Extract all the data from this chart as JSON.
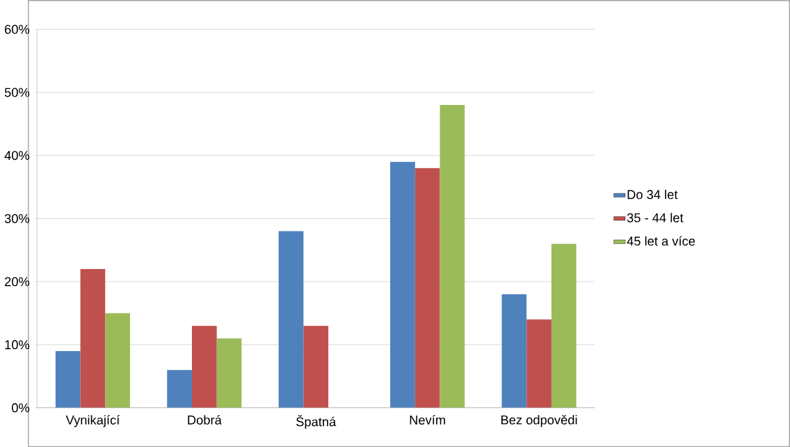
{
  "chart_data": {
    "type": "bar",
    "categories": [
      "Vynikající",
      "Dobrá",
      "Špatná",
      "Nevím",
      "Bez odpovědi"
    ],
    "series": [
      {
        "name": "Do 34 let",
        "color": "#4f81bd",
        "values": [
          9,
          6,
          28,
          39,
          18
        ]
      },
      {
        "name": "35 - 44 let",
        "color": "#c0504d",
        "values": [
          22,
          13,
          13,
          38,
          14
        ]
      },
      {
        "name": "45 let a více",
        "color": "#9bbb59",
        "values": [
          15,
          11,
          null,
          48,
          26
        ]
      }
    ],
    "ylim": [
      0,
      60
    ],
    "yticks": [
      {
        "value": 0,
        "label": "0%"
      },
      {
        "value": 10,
        "label": "10%"
      },
      {
        "value": 20,
        "label": "20%"
      },
      {
        "value": 30,
        "label": "30%"
      },
      {
        "value": 40,
        "label": "40%"
      },
      {
        "value": 50,
        "label": "50%"
      },
      {
        "value": 60,
        "label": "60%"
      }
    ],
    "grid": "y",
    "legend": "right"
  }
}
